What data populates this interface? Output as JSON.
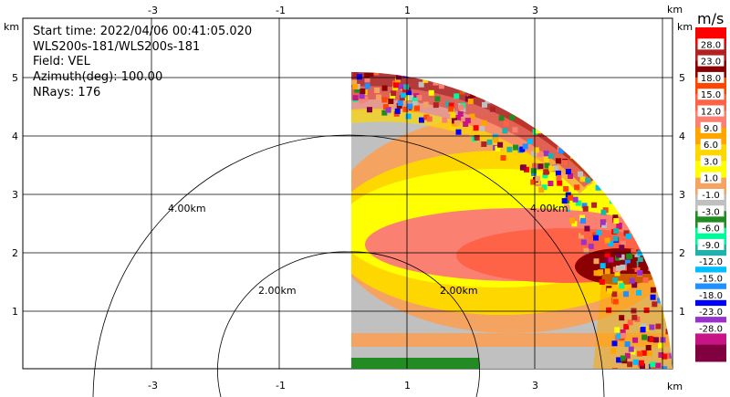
{
  "info": {
    "start_time": "Start time: 2022/04/06 00:41:05.020",
    "instrument": "WLS200s-181/WLS200s-181",
    "field": "Field: VEL",
    "azimuth": "Azimuth(deg): 100.00",
    "nrays": "NRays: 176"
  },
  "axes": {
    "x_ticks": [
      "-3",
      "-1",
      "1",
      "3"
    ],
    "y_ticks": [
      "1",
      "2",
      "3",
      "4",
      "5"
    ],
    "x_unit": "km",
    "y_unit": "km"
  },
  "range_rings": {
    "inner_left": "2.00km",
    "inner_right": "2.00km",
    "outer_left": "4.00km",
    "outer_right": "4.00km"
  },
  "colorbar": {
    "unit": "m/s",
    "labels": [
      "28.0",
      "23.0",
      "18.0",
      "15.0",
      "12.0",
      "9.0",
      "6.0",
      "3.0",
      "1.0",
      "-1.0",
      "-3.0",
      "-6.0",
      "-9.0",
      "-12.0",
      "-15.0",
      "-18.0",
      "-23.0",
      "-28.0"
    ],
    "colors": [
      "#ff0000",
      "#b22222",
      "#8b0000",
      "#ff4500",
      "#ff6347",
      "#fa8072",
      "#ffa500",
      "#ffd700",
      "#ffff00",
      "#f4a460",
      "#c0c0c0",
      "#228b22",
      "#00fa9a",
      "#20b2aa",
      "#00bfff",
      "#1e90ff",
      "#0000ff",
      "#9932cc",
      "#c71585",
      "#800040"
    ]
  }
}
